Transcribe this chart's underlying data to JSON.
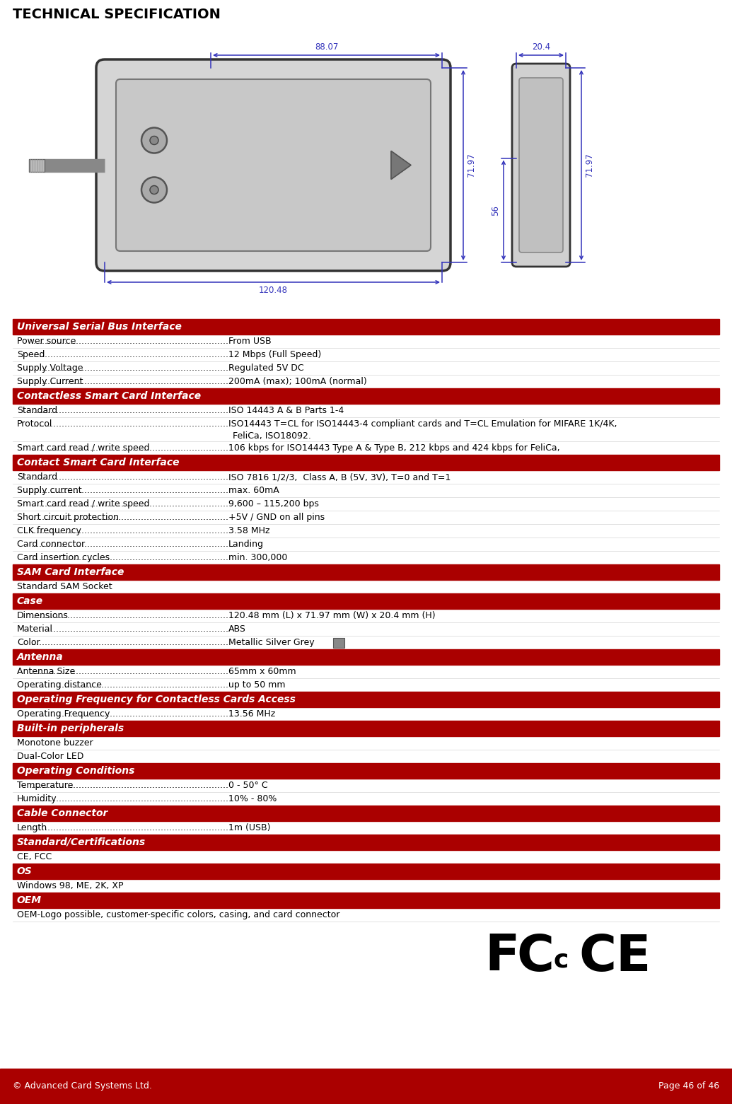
{
  "title": "TECHNICAL SPECIFICATION",
  "bg_color": "#ffffff",
  "header_bg": "#aa0000",
  "header_text_color": "#ffffff",
  "body_text_color": "#000000",
  "footer_bg": "#aa0000",
  "footer_text_color": "#ffffff",
  "footer_left": "© Advanced Card Systems Ltd.",
  "footer_right": "Page 46 of 46",
  "red_color": "#aa0000",
  "blue_color": "#3333bb",
  "sections": [
    {
      "type": "header",
      "text": "Universal Serial Bus Interface"
    },
    {
      "type": "row",
      "label": "Power source",
      "value": "From USB"
    },
    {
      "type": "row",
      "label": "Speed",
      "value": "12 Mbps (Full Speed)"
    },
    {
      "type": "row",
      "label": "Supply Voltage",
      "value": "Regulated 5V DC"
    },
    {
      "type": "row",
      "label": "Supply Current",
      "value": "200mA (max); 100mA (normal)"
    },
    {
      "type": "header",
      "text": "Contactless Smart Card Interface"
    },
    {
      "type": "row",
      "label": "Standard",
      "value": "ISO 14443 A & B Parts 1-4"
    },
    {
      "type": "row2",
      "label": "Protocol",
      "line1": "ISO14443 T=CL for ISO14443-4 compliant cards and T=CL Emulation for MIFARE 1K/4K,",
      "line2": "FeliCa, ISO18092."
    },
    {
      "type": "row",
      "label": "Smart card read / write speed",
      "value": "106 kbps for ISO14443 Type A & Type B, 212 kbps and 424 kbps for FeliCa,"
    },
    {
      "type": "header",
      "text": "Contact Smart Card Interface"
    },
    {
      "type": "row",
      "label": "Standard",
      "value": "ISO 7816 1/2/3,  Class A, B (5V, 3V), T=0 and T=1"
    },
    {
      "type": "row",
      "label": "Supply current",
      "value": "max. 60mA"
    },
    {
      "type": "row",
      "label": "Smart card read / write speed",
      "value": "9,600 – 115,200 bps"
    },
    {
      "type": "row",
      "label": "Short circuit protection",
      "value": "+5V / GND on all pins"
    },
    {
      "type": "row",
      "label": "CLK frequency",
      "value": "3.58 MHz"
    },
    {
      "type": "row",
      "label": "Card connector",
      "value": "Landing"
    },
    {
      "type": "row",
      "label": "Card insertion cycles",
      "value": "min. 300,000"
    },
    {
      "type": "header",
      "text": "SAM Card Interface"
    },
    {
      "type": "plain",
      "text": "Standard SAM Socket"
    },
    {
      "type": "header",
      "text": "Case"
    },
    {
      "type": "row",
      "label": "Dimensions",
      "value": "120.48 mm (L) x 71.97 mm (W) x 20.4 mm (H)"
    },
    {
      "type": "row",
      "label": "Material",
      "value": "ABS"
    },
    {
      "type": "row_color",
      "label": "Color",
      "value": "Metallic Silver Grey",
      "color_box": "#888888"
    },
    {
      "type": "header",
      "text": "Antenna"
    },
    {
      "type": "row",
      "label": "Antenna Size",
      "value": "65mm x 60mm"
    },
    {
      "type": "row",
      "label": "Operating distance",
      "value": "up to 50 mm"
    },
    {
      "type": "header",
      "text": "Operating Frequency for Contactless Cards Access"
    },
    {
      "type": "row",
      "label": "Operating Frequency",
      "value": "13.56 MHz"
    },
    {
      "type": "header",
      "text": "Built-in peripherals"
    },
    {
      "type": "plain",
      "text": "Monotone buzzer"
    },
    {
      "type": "plain",
      "text": "Dual-Color LED"
    },
    {
      "type": "header",
      "text": "Operating Conditions"
    },
    {
      "type": "row",
      "label": "Temperature",
      "value": "0 - 50° C"
    },
    {
      "type": "row",
      "label": "Humidity",
      "value": "10% - 80%"
    },
    {
      "type": "header",
      "text": "Cable Connector"
    },
    {
      "type": "row",
      "label": "Length",
      "value": "1m (USB)"
    },
    {
      "type": "header",
      "text": "Standard/Certifications"
    },
    {
      "type": "plain",
      "text": "CE, FCC"
    },
    {
      "type": "header",
      "text": "OS"
    },
    {
      "type": "plain",
      "text": "Windows 98, ME, 2K, XP"
    },
    {
      "type": "header",
      "text": "OEM"
    },
    {
      "type": "plain",
      "text": "OEM-Logo possible, customer-specific colors, casing, and card connector"
    }
  ]
}
